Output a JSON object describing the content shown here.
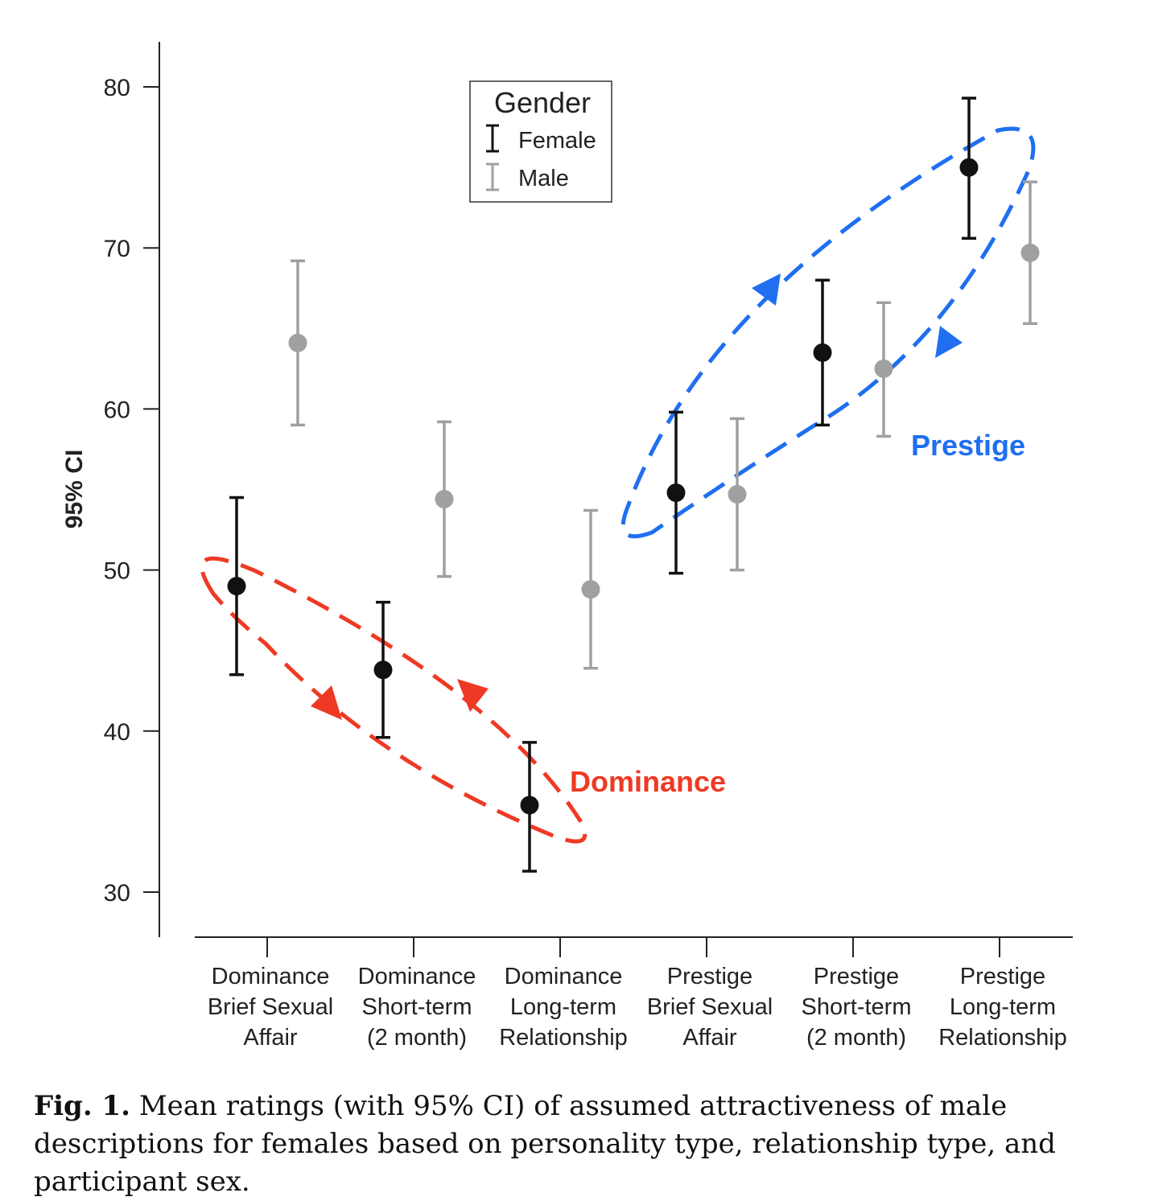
{
  "chart_data": {
    "type": "scatter",
    "subtype": "point-with-95CI-errorbars",
    "ylabel": "95% CI",
    "ylim": [
      27,
      82.5
    ],
    "yticks": [
      30,
      40,
      50,
      60,
      70,
      80
    ],
    "categories": [
      [
        "Dominance",
        "Brief Sexual",
        "Affair"
      ],
      [
        "Dominance",
        "Short-term",
        "(2 month)"
      ],
      [
        "Dominance",
        "Long-term",
        "Relationship"
      ],
      [
        "Prestige",
        "Brief Sexual",
        "Affair"
      ],
      [
        "Prestige",
        "Short-term",
        "(2 month)"
      ],
      [
        "Prestige",
        "Long-term",
        "Relationship"
      ]
    ],
    "legend": {
      "title": "Gender",
      "position": "top-center"
    },
    "series": [
      {
        "name": "Female",
        "color": "#111111",
        "means": [
          49.0,
          43.8,
          35.4,
          54.8,
          63.5,
          75.0
        ],
        "lower": [
          43.5,
          39.6,
          31.3,
          49.8,
          59.0,
          70.6
        ],
        "upper": [
          54.5,
          48.0,
          39.3,
          59.8,
          68.0,
          79.3
        ]
      },
      {
        "name": "Male",
        "color": "#a0a0a0",
        "means": [
          64.1,
          54.4,
          48.8,
          54.7,
          62.5,
          69.7
        ],
        "lower": [
          59.0,
          49.6,
          43.9,
          50.0,
          58.3,
          65.3
        ],
        "upper": [
          69.2,
          59.2,
          53.7,
          59.4,
          66.6,
          74.1
        ]
      }
    ],
    "annotations": [
      {
        "text": "Dominance",
        "color": "#ee3a24"
      },
      {
        "text": "Prestige",
        "color": "#1f6ff0"
      }
    ]
  },
  "caption": {
    "label": "Fig. 1.",
    "text": "Mean ratings (with 95% CI) of assumed attractiveness of male descriptions for females based on personality type, relationship type, and participant sex."
  }
}
